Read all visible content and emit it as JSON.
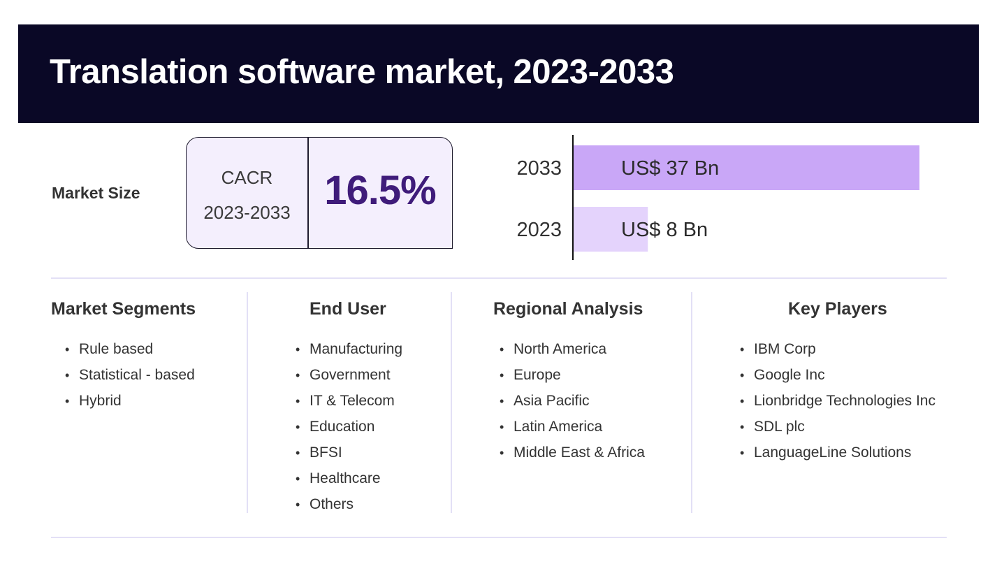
{
  "title": "Translation software market, 2023-2033",
  "market_size_label": "Market Size",
  "cagr": {
    "label": "CACR",
    "period": "2023-2033",
    "value": "16.5%"
  },
  "chart_data": {
    "type": "bar",
    "orientation": "horizontal",
    "categories": [
      "2033",
      "2023"
    ],
    "values": [
      37,
      8
    ],
    "data_labels": [
      "US$ 37 Bn",
      "US$ 8 Bn"
    ],
    "colors": [
      "#c9a7f7",
      "#e4d3fc"
    ],
    "xlim": [
      0,
      37
    ],
    "grid": false
  },
  "columns": [
    {
      "heading": "Market Segments",
      "items": [
        "Rule based",
        "Statistical - based",
        "Hybrid"
      ]
    },
    {
      "heading": "End User",
      "items": [
        "Manufacturing",
        "Government",
        "IT & Telecom",
        "Education",
        "BFSI",
        "Healthcare",
        "Others"
      ]
    },
    {
      "heading": "Regional Analysis",
      "items": [
        "North America",
        "Europe",
        "Asia Pacific",
        "Latin America",
        "Middle East & Africa"
      ]
    },
    {
      "heading": "Key Players",
      "items": [
        "IBM Corp",
        "Google Inc",
        "Lionbridge Technologies Inc",
        "SDL plc",
        "LanguageLine Solutions"
      ]
    }
  ],
  "bullet_char": "•",
  "colors": {
    "header_bg": "#0a0826",
    "accent": "#3f1c7a",
    "box_bg": "#f4effd",
    "divider": "#e3e0f6"
  }
}
